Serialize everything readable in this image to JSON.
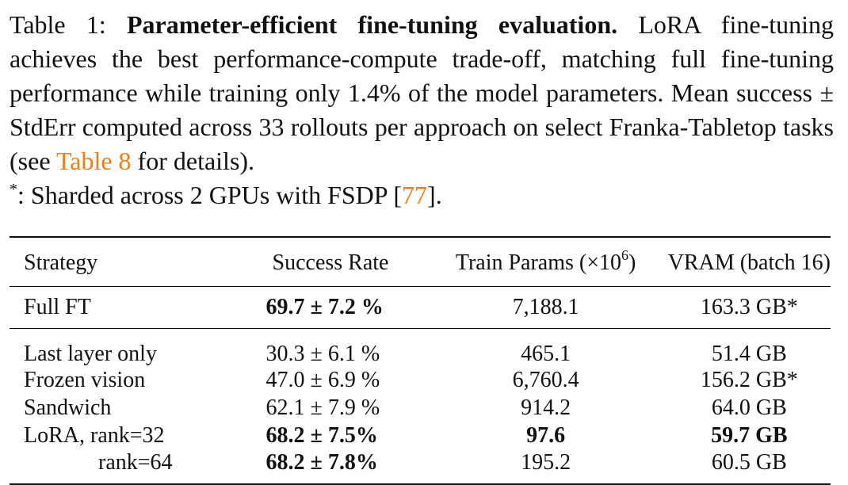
{
  "caption": {
    "label": "Table 1:",
    "title": "Parameter-efficient fine-tuning evaluation.",
    "body_1": "LoRA fine-tuning achieves the best performance-compute trade-off, matching full fine-tuning performance while training only 1.4% of the model parameters. Mean success ± StdErr computed across 33 rollouts per approach on select Franka-Tabletop tasks (see",
    "ref_table": "Table 8",
    "body_2": "for details).",
    "footnote_mark": "*",
    "footnote_text": ": Sharded across 2 GPUs with FSDP [",
    "ref_cite": "77",
    "footnote_end": "].",
    "ref_color": "#ef7d10"
  },
  "table": {
    "headers": {
      "strategy": "Strategy",
      "success": "Success Rate",
      "params_prefix": "Train Params (×10",
      "params_exp": "6",
      "params_suffix": ")",
      "vram": "VRAM (batch 16)"
    },
    "full_ft": {
      "strategy": "Full FT",
      "success": "69.7 ± 7.2 %",
      "params": "7,188.1",
      "vram": "163.3 GB*"
    },
    "rows": [
      {
        "strategy": "Last layer only",
        "success": "30.3 ± 6.1 %",
        "params": "465.1",
        "vram": "51.4 GB"
      },
      {
        "strategy": "Frozen vision",
        "success": "47.0 ± 6.9 %",
        "params": "6,760.4",
        "vram": "156.2 GB*"
      },
      {
        "strategy": "Sandwich",
        "success": "62.1 ± 7.9 %",
        "params": "914.2",
        "vram": "64.0 GB"
      },
      {
        "strategy": "LoRA, rank=32",
        "success": "68.2 ± 7.5%",
        "params": "97.6",
        "vram": "59.7 GB"
      },
      {
        "strategy": "rank=64",
        "success": "68.2 ± 7.8%",
        "params": "195.2",
        "vram": "60.5 GB"
      }
    ]
  }
}
